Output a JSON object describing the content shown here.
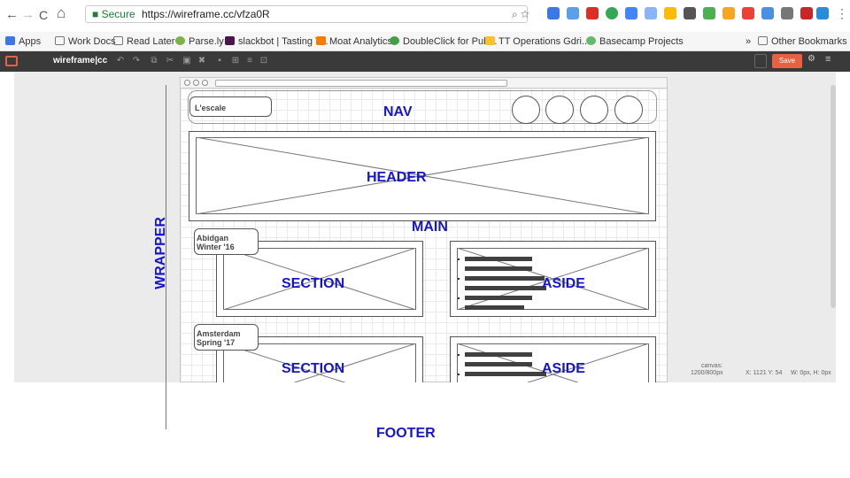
{
  "browser": {
    "nav_back": "←",
    "nav_forward": "→",
    "nav_reload": "C",
    "nav_home": "⌂",
    "secure_label": "Secure",
    "url": "https://wireframe.cc/vfza0R",
    "menu_icon": "⋮"
  },
  "bookmarks": {
    "items": [
      "Apps",
      "Work Docs",
      "Read Later",
      "Parse.ly",
      "slackbot | Tasting T...",
      "Moat Analytics",
      "DoubleClick for Pub...",
      "TT Operations Gdri...",
      "Basecamp Projects"
    ],
    "overflow": "»",
    "other": "Other Bookmarks"
  },
  "app": {
    "name": "wireframe|cc",
    "save_label": "Save",
    "accent": "#e96143"
  },
  "wireframe": {
    "brand": "L'escale",
    "nav": "NAV",
    "header": "HEADER",
    "main": "MAIN",
    "sections": [
      {
        "city": "Abidgan",
        "season": "Winter '16",
        "section": "SECTION",
        "aside": "ASIDE"
      },
      {
        "city": "Amsterdam",
        "season": "Spring '17",
        "section": "SECTION",
        "aside": "ASIDE"
      }
    ],
    "annotation_color": "#1515cc"
  },
  "status": {
    "canvas_label": "canvas:",
    "canvas_size": "1200/800px",
    "coords": "X: 1121 Y: 54",
    "dims": "W: 0px, H: 0px"
  },
  "labels": {
    "wrapper": "WRAPPER",
    "footer": "FOOTER"
  }
}
